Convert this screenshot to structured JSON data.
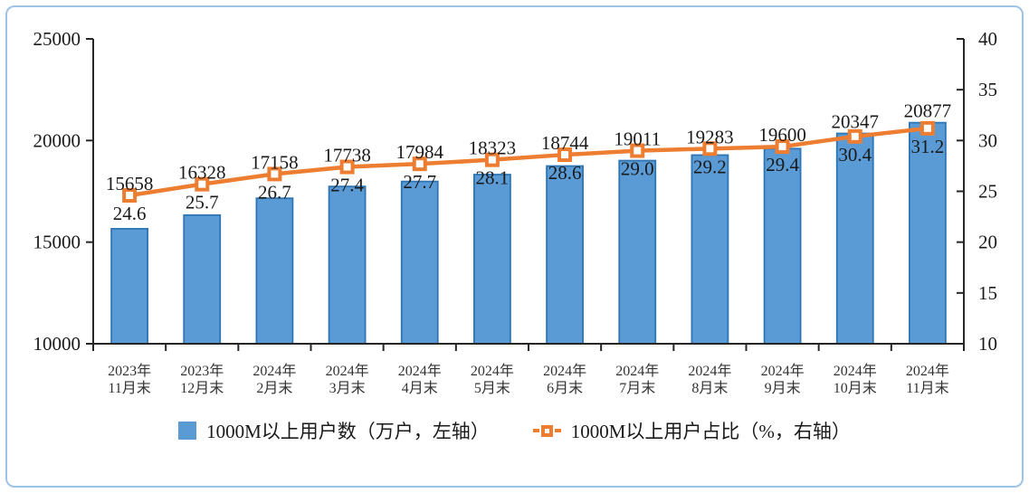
{
  "chart_data": {
    "type": "bar",
    "subtype": "bar-line-combo",
    "categories": [
      [
        "2023年",
        "11月末"
      ],
      [
        "2023年",
        "12月末"
      ],
      [
        "2024年",
        "2月末"
      ],
      [
        "2024年",
        "3月末"
      ],
      [
        "2024年",
        "4月末"
      ],
      [
        "2024年",
        "5月末"
      ],
      [
        "2024年",
        "6月末"
      ],
      [
        "2024年",
        "7月末"
      ],
      [
        "2024年",
        "8月末"
      ],
      [
        "2024年",
        "9月末"
      ],
      [
        "2024年",
        "10月末"
      ],
      [
        "2024年",
        "11月末"
      ]
    ],
    "series": [
      {
        "name": "1000M以上用户数（万户，左轴）",
        "type": "bar",
        "axis": "left",
        "values": [
          15658,
          16328,
          17158,
          17738,
          17984,
          18323,
          18744,
          19011,
          19283,
          19600,
          20347,
          20877
        ],
        "fill_color": "#5B9BD5",
        "border_color": "#2E75B6"
      },
      {
        "name": "1000M以上用户占比（%，右轴）",
        "type": "line",
        "axis": "right",
        "values": [
          24.6,
          25.7,
          26.7,
          27.4,
          27.7,
          28.1,
          28.6,
          29.0,
          29.2,
          29.4,
          30.4,
          31.2
        ],
        "color": "#ED7D31",
        "marker": "hollow-square"
      }
    ],
    "left_axis": {
      "min": 10000,
      "max": 25000,
      "step": 5000,
      "ticks": [
        25000,
        20000,
        15000,
        10000
      ]
    },
    "right_axis": {
      "min": 10,
      "max": 40,
      "step": 5,
      "ticks": [
        40,
        35,
        30,
        25,
        20,
        15,
        10
      ]
    },
    "grid": false,
    "legend_position": "bottom",
    "title": ""
  },
  "legend": {
    "bar_label": "1000M以上用户数（万户，左轴）",
    "line_label": "1000M以上用户占比（%，右轴）"
  },
  "colors": {
    "bar_fill": "#5B9BD5",
    "bar_border": "#2E75B6",
    "line": "#ED7D31",
    "axis": "#262626",
    "label_text": "#1a1a1a",
    "category_text": "#333333",
    "frame_border": "#9DC3E6",
    "background": "#FFFFFF"
  }
}
